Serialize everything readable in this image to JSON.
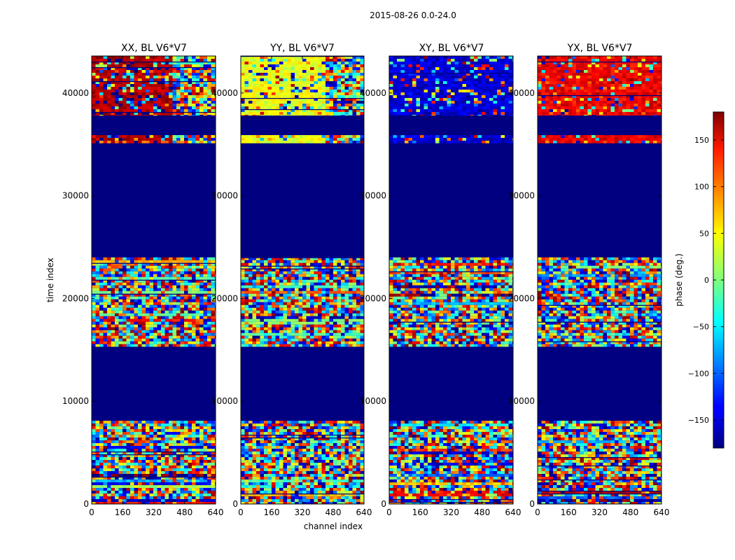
{
  "suptitle": "2015-08-26 0.0-24.0",
  "chart_data": {
    "type": "heatmap",
    "xlabel": "channel index",
    "ylabel": "time index",
    "x_ticks": [
      0,
      160,
      320,
      480,
      640
    ],
    "y_ticks": [
      0,
      10000,
      20000,
      30000,
      40000
    ],
    "xlim": [
      0,
      640
    ],
    "ylim": [
      0,
      43600
    ],
    "colorbar": {
      "label": "phase (deg.)",
      "range": [
        -180,
        180
      ],
      "ticks": [
        150,
        100,
        50,
        0,
        -50,
        -100,
        -150
      ],
      "tick_labels": [
        "150",
        "100",
        "50",
        "0",
        "−50",
        "−100",
        "−150"
      ],
      "colormap": "jet"
    },
    "panels": [
      {
        "id": "xx",
        "title": "XX, BL V6*V7",
        "bias": 165,
        "bias_end_channel": 400
      },
      {
        "id": "yy",
        "title": "YY, BL V6*V7",
        "bias": 40,
        "bias_end_channel": 440
      },
      {
        "id": "xy",
        "title": "XY, BL V6*V7",
        "bias": -150,
        "bias_end_channel": 640
      },
      {
        "id": "yx",
        "title": "YX, BL V6*V7",
        "bias": 140,
        "bias_end_channel": 640
      }
    ],
    "flagged_time_ranges": [
      [
        8100,
        15300
      ],
      [
        24000,
        35100
      ],
      [
        35900,
        37800
      ]
    ],
    "flagged_phase": -180,
    "data_time_ranges": [
      [
        0,
        8100
      ],
      [
        15300,
        24000
      ],
      [
        35100,
        35900
      ],
      [
        37800,
        43600
      ]
    ]
  }
}
